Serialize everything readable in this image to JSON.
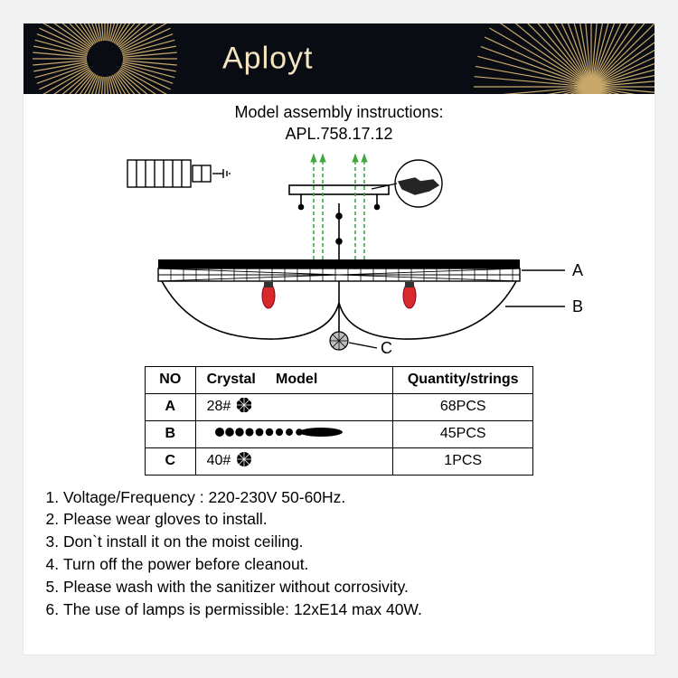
{
  "header": {
    "brand": "Aployt",
    "ray_color": "#c9a96a",
    "bg": "#0a0c14",
    "text_color": "#f4e4c1"
  },
  "title": {
    "line1": "Model assembly instructions:",
    "line2": "APL.758.17.12"
  },
  "diagram": {
    "labels": {
      "A": "A",
      "B": "B",
      "C": "C"
    },
    "guide_color": "#3fa93f",
    "bulb_color": "#d82a2a",
    "stroke": "#000000"
  },
  "table": {
    "headers": {
      "no": "NO",
      "model": "Crystal     Model",
      "qty": "Quantity/strings"
    },
    "rows": [
      {
        "no": "A",
        "model_text": "28#",
        "icon": "octagon",
        "qty": "68PCS"
      },
      {
        "no": "B",
        "model_text": "",
        "icon": "strand",
        "qty": "45PCS"
      },
      {
        "no": "C",
        "model_text": "40#",
        "icon": "ball",
        "qty": "1PCS"
      }
    ]
  },
  "instructions": [
    "Voltage/Frequency : 220-230V 50-60Hz.",
    "Please wear gloves to install.",
    "Don`t install it on the moist ceiling.",
    "Turn off the power before cleanout.",
    "Please wash with the sanitizer without corrosivity.",
    "The use of lamps is permissible: 12xE14 max 40W."
  ]
}
